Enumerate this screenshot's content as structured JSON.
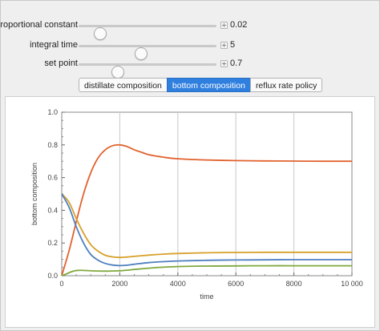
{
  "controls": [
    {
      "label": "proportional constant",
      "value": "0.02",
      "fraction": 0.15
    },
    {
      "label": "integral time",
      "value": "5",
      "fraction": 0.45
    },
    {
      "label": "set point",
      "value": "0.7",
      "fraction": 0.28
    }
  ],
  "tabs": [
    {
      "label": "distillate composition",
      "active": false
    },
    {
      "label": "bottom composition",
      "active": true
    },
    {
      "label": "reflux rate policy",
      "active": false
    }
  ],
  "colors": {
    "accent": "#2f7fdf",
    "orange": "#e2622e",
    "gold": "#d7a12a",
    "blue": "#4f7fbf",
    "green": "#7ea83d"
  },
  "chart_data": {
    "type": "line",
    "xlabel": "time",
    "ylabel": "bottom composition",
    "xlim": [
      0,
      10000
    ],
    "ylim": [
      0,
      1
    ],
    "xticks": [
      0,
      2000,
      4000,
      6000,
      8000,
      10000
    ],
    "xtick_labels": [
      "0",
      "2000",
      "4000",
      "6000",
      "8000",
      "10 000"
    ],
    "yticks": [
      0,
      0.2,
      0.4,
      0.6,
      0.8,
      1
    ],
    "ytick_labels": [
      "0.0",
      "0.2",
      "0.4",
      "0.6",
      "0.8",
      "1.0"
    ],
    "grid": true,
    "series": [
      {
        "color": "#e2622e",
        "x": [
          0,
          250,
          500,
          750,
          1000,
          1250,
          1500,
          1750,
          2000,
          2250,
          2500,
          2750,
          3000,
          3500,
          4000,
          5000,
          6000,
          7000,
          8000,
          9000,
          10000
        ],
        "y": [
          0.0,
          0.15,
          0.33,
          0.5,
          0.63,
          0.72,
          0.77,
          0.795,
          0.8,
          0.79,
          0.77,
          0.755,
          0.74,
          0.725,
          0.715,
          0.708,
          0.704,
          0.702,
          0.701,
          0.7,
          0.7
        ]
      },
      {
        "color": "#d7a12a",
        "x": [
          0,
          250,
          500,
          750,
          1000,
          1250,
          1500,
          1750,
          2000,
          2250,
          2500,
          3000,
          3500,
          4000,
          5000,
          6000,
          7000,
          8000,
          9000,
          10000
        ],
        "y": [
          0.5,
          0.45,
          0.35,
          0.26,
          0.19,
          0.15,
          0.125,
          0.115,
          0.112,
          0.114,
          0.118,
          0.126,
          0.132,
          0.136,
          0.14,
          0.142,
          0.143,
          0.143,
          0.143,
          0.143
        ]
      },
      {
        "color": "#4f7fbf",
        "x": [
          0,
          250,
          500,
          750,
          1000,
          1250,
          1500,
          1750,
          2000,
          2250,
          2500,
          3000,
          3500,
          4000,
          5000,
          6000,
          7000,
          8000,
          9000,
          10000
        ],
        "y": [
          0.5,
          0.42,
          0.3,
          0.2,
          0.13,
          0.095,
          0.075,
          0.065,
          0.062,
          0.064,
          0.07,
          0.08,
          0.086,
          0.09,
          0.094,
          0.096,
          0.097,
          0.098,
          0.098,
          0.098
        ]
      },
      {
        "color": "#7ea83d",
        "x": [
          0,
          150,
          300,
          450,
          600,
          800,
          1000,
          1500,
          2000,
          2500,
          3000,
          3500,
          4000,
          5000,
          6000,
          7000,
          8000,
          9000,
          10000
        ],
        "y": [
          0.0,
          0.01,
          0.022,
          0.03,
          0.033,
          0.032,
          0.03,
          0.028,
          0.03,
          0.038,
          0.046,
          0.052,
          0.056,
          0.059,
          0.06,
          0.061,
          0.061,
          0.061,
          0.061
        ]
      }
    ]
  }
}
